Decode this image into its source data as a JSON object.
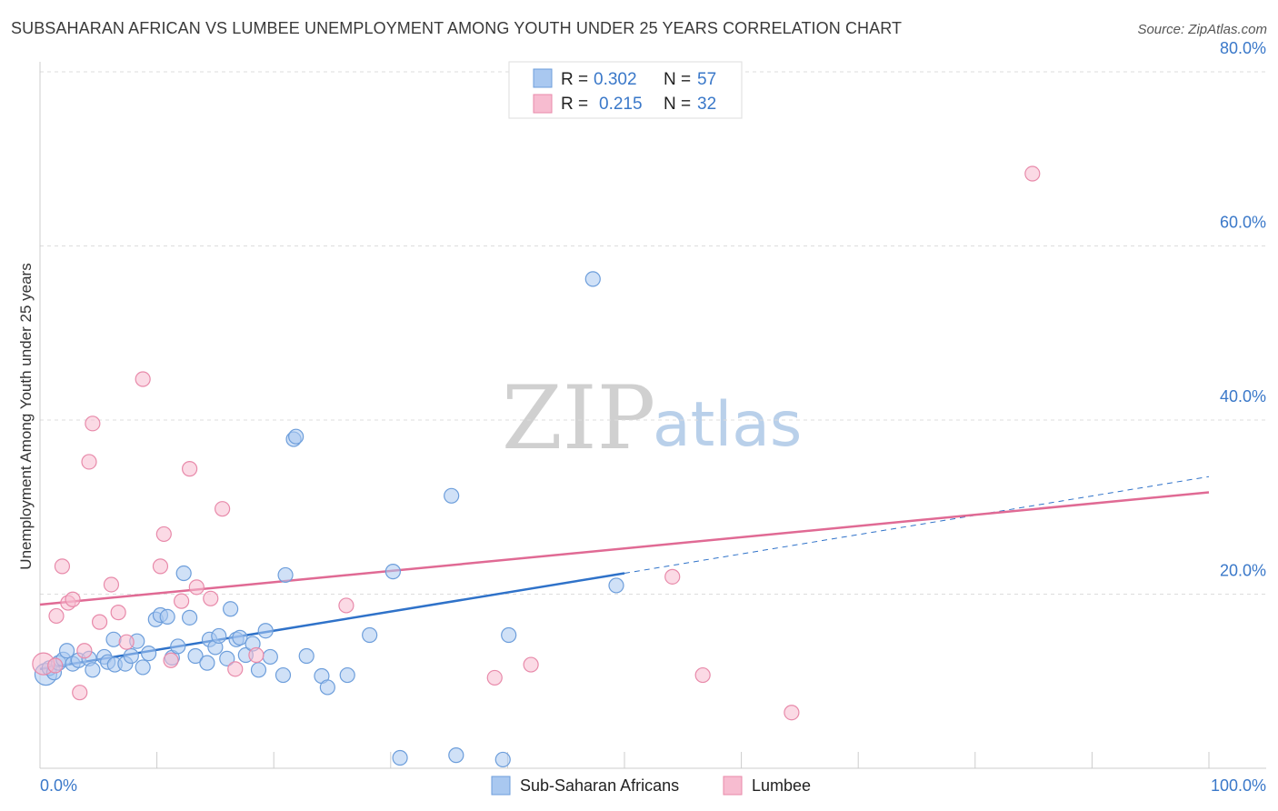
{
  "header": {
    "title": "SUBSAHARAN AFRICAN VS LUMBEE UNEMPLOYMENT AMONG YOUTH UNDER 25 YEARS CORRELATION CHART",
    "source": "Source: ZipAtlas.com"
  },
  "watermark": {
    "part1": "ZIP",
    "part2": "atlas"
  },
  "legend": {
    "rows": [
      {
        "r_label": "R =",
        "r_value": "0.302",
        "n_label": "N =",
        "n_value": "57"
      },
      {
        "r_label": "R =",
        "r_value": "0.215",
        "n_label": "N =",
        "n_value": "32"
      }
    ]
  },
  "colors": {
    "blue_fill": "#a9c8f0",
    "blue_stroke": "#6d9edb",
    "blue_line": "#2f72c9",
    "pink_fill": "#f7bcd0",
    "pink_stroke": "#e88aaa",
    "pink_line": "#e06a94",
    "tick_text": "#3a78c9",
    "grid": "#dddddd"
  },
  "chart_data": {
    "type": "scatter",
    "title": "SUBSAHARAN AFRICAN VS LUMBEE UNEMPLOYMENT AMONG YOUTH UNDER 25 YEARS CORRELATION CHART",
    "xlabel": "",
    "ylabel": "Unemployment Among Youth under 25 years",
    "xlim": [
      0,
      100
    ],
    "ylim": [
      0,
      80
    ],
    "x_tick_labels": [
      "0.0%",
      "100.0%"
    ],
    "y_ticks": [
      20,
      40,
      60,
      80
    ],
    "y_tick_labels": [
      "20.0%",
      "40.0%",
      "60.0%",
      "80.0%"
    ],
    "grid": true,
    "legend_position": "top-center",
    "series": [
      {
        "name": "Sub-Saharan Africans",
        "r": 0.302,
        "n": 57,
        "trend": {
          "x0": 0,
          "y0": 11.4,
          "x1": 50,
          "y1": 22.4,
          "dashed_to": {
            "x": 100,
            "y": 33.5
          }
        },
        "points": [
          [
            0.5,
            10.8
          ],
          [
            0.8,
            11.5
          ],
          [
            1.2,
            11.0
          ],
          [
            1.6,
            12.1
          ],
          [
            2.0,
            12.5
          ],
          [
            2.3,
            13.5
          ],
          [
            2.8,
            12.0
          ],
          [
            3.3,
            12.4
          ],
          [
            4.2,
            12.6
          ],
          [
            4.5,
            11.3
          ],
          [
            5.5,
            12.8
          ],
          [
            5.8,
            12.2
          ],
          [
            6.4,
            11.9
          ],
          [
            6.3,
            14.8
          ],
          [
            7.3,
            12.0
          ],
          [
            7.8,
            12.9
          ],
          [
            8.3,
            14.6
          ],
          [
            8.8,
            11.6
          ],
          [
            9.3,
            13.2
          ],
          [
            9.9,
            17.1
          ],
          [
            10.3,
            17.6
          ],
          [
            10.9,
            17.4
          ],
          [
            11.3,
            12.7
          ],
          [
            11.8,
            14.0
          ],
          [
            12.3,
            22.4
          ],
          [
            12.8,
            17.3
          ],
          [
            13.3,
            12.9
          ],
          [
            14.3,
            12.1
          ],
          [
            14.5,
            14.8
          ],
          [
            15.0,
            13.9
          ],
          [
            15.3,
            15.2
          ],
          [
            16.0,
            12.6
          ],
          [
            16.3,
            18.3
          ],
          [
            16.8,
            14.8
          ],
          [
            17.1,
            15.0
          ],
          [
            17.6,
            13.0
          ],
          [
            18.2,
            14.3
          ],
          [
            18.7,
            11.3
          ],
          [
            19.3,
            15.8
          ],
          [
            19.7,
            12.8
          ],
          [
            20.8,
            10.7
          ],
          [
            21.0,
            22.2
          ],
          [
            21.7,
            37.8
          ],
          [
            21.9,
            38.1
          ],
          [
            22.8,
            12.9
          ],
          [
            24.1,
            10.6
          ],
          [
            24.6,
            9.3
          ],
          [
            26.3,
            10.7
          ],
          [
            28.2,
            15.3
          ],
          [
            30.2,
            22.6
          ],
          [
            30.8,
            1.2
          ],
          [
            35.2,
            31.3
          ],
          [
            35.6,
            1.5
          ],
          [
            39.6,
            1.0
          ],
          [
            40.1,
            15.3
          ],
          [
            47.3,
            56.2
          ],
          [
            49.3,
            21.0
          ]
        ]
      },
      {
        "name": "Lumbee",
        "r": 0.215,
        "n": 32,
        "trend": {
          "x0": 0,
          "y0": 18.8,
          "x1": 100,
          "y1": 31.7
        },
        "points": [
          [
            0.3,
            12.0
          ],
          [
            1.3,
            11.8
          ],
          [
            1.4,
            17.5
          ],
          [
            1.9,
            23.2
          ],
          [
            2.4,
            19.0
          ],
          [
            2.8,
            19.4
          ],
          [
            3.4,
            8.7
          ],
          [
            3.8,
            13.5
          ],
          [
            4.2,
            35.2
          ],
          [
            4.5,
            39.6
          ],
          [
            5.1,
            16.8
          ],
          [
            6.1,
            21.1
          ],
          [
            6.7,
            17.9
          ],
          [
            7.4,
            14.5
          ],
          [
            8.8,
            44.7
          ],
          [
            10.3,
            23.2
          ],
          [
            10.6,
            26.9
          ],
          [
            11.2,
            12.4
          ],
          [
            12.1,
            19.2
          ],
          [
            12.8,
            34.4
          ],
          [
            13.4,
            20.8
          ],
          [
            14.6,
            19.5
          ],
          [
            15.6,
            29.8
          ],
          [
            16.7,
            11.4
          ],
          [
            18.5,
            13.0
          ],
          [
            26.2,
            18.7
          ],
          [
            38.9,
            10.4
          ],
          [
            42.0,
            11.9
          ],
          [
            54.1,
            22.0
          ],
          [
            56.7,
            10.7
          ],
          [
            64.3,
            6.4
          ],
          [
            84.9,
            68.3
          ]
        ]
      }
    ]
  },
  "bottom_legend": {
    "items": [
      "Sub-Saharan Africans",
      "Lumbee"
    ]
  }
}
